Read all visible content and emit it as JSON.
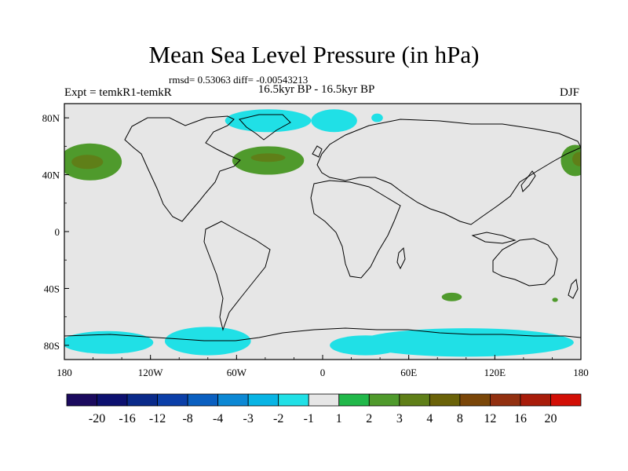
{
  "chart_data": {
    "type": "heatmap",
    "title": "Mean Sea Level Pressure (in hPa)",
    "stats_text": "rmsd= 0.53063 diff= -0.00543213",
    "left_label": "Expt = temkR1-temkR",
    "center_label": "16.5kyr BP - 16.5kyr BP",
    "right_label": "DJF",
    "x_ticks": [
      "180",
      "120W",
      "60W",
      "0",
      "60E",
      "120E",
      "180"
    ],
    "x_tick_values": [
      -180,
      -120,
      -60,
      0,
      60,
      120,
      180
    ],
    "y_ticks": [
      "80N",
      "40N",
      "0",
      "40S",
      "80S"
    ],
    "y_tick_values": [
      80,
      40,
      0,
      -40,
      -80
    ],
    "xlim": [
      -180,
      180
    ],
    "ylim": [
      -90,
      90
    ],
    "colorbar": {
      "labels": [
        "-20",
        "-16",
        "-12",
        "-8",
        "-4",
        "-3",
        "-2",
        "-1",
        "1",
        "2",
        "3",
        "4",
        "8",
        "12",
        "16",
        "20"
      ],
      "colors": [
        "#1b0a5e",
        "#0d1170",
        "#0a2a8a",
        "#0b3fa8",
        "#0a5fc0",
        "#0c88d4",
        "#08b4e4",
        "#20e0e6",
        "#e6e6e6",
        "#21b84a",
        "#4f9a2c",
        "#5f7f18",
        "#6a6208",
        "#7a4608",
        "#923010",
        "#a81c0a",
        "#d20f06"
      ]
    },
    "anomalies": [
      {
        "name": "north-pacific-high",
        "level": 2,
        "lon": -162,
        "lat": 49,
        "rlon": 22,
        "rlat": 13
      },
      {
        "name": "north-pacific-core",
        "level": 3,
        "lon": -164,
        "lat": 49,
        "rlon": 11,
        "rlat": 5
      },
      {
        "name": "north-pacific-east",
        "level": 2,
        "lon": 176,
        "lat": 50,
        "rlon": 10,
        "rlat": 11
      },
      {
        "name": "north-pacific-east-core",
        "level": 3,
        "lon": 179,
        "lat": 51,
        "rlon": 5,
        "rlat": 5
      },
      {
        "name": "north-atlantic-high",
        "level": 2,
        "lon": -38,
        "lat": 50,
        "rlon": 25,
        "rlat": 10
      },
      {
        "name": "north-atlantic-core",
        "level": 3,
        "lon": -38,
        "lat": 52,
        "rlon": 12,
        "rlat": 3
      },
      {
        "name": "southern-indian-high",
        "level": 2,
        "lon": 90,
        "lat": -46,
        "rlon": 7,
        "rlat": 3
      },
      {
        "name": "south-pacific-high",
        "level": 2,
        "lon": 162,
        "lat": -48,
        "rlon": 2,
        "rlat": 1.5
      },
      {
        "name": "arctic-low",
        "level": -1,
        "lon": -38,
        "lat": 78,
        "rlon": 30,
        "rlat": 8
      },
      {
        "name": "arctic-low-east",
        "level": -1,
        "lon": 8,
        "lat": 78,
        "rlon": 16,
        "rlat": 8
      },
      {
        "name": "arctic-low-small",
        "level": -1,
        "lon": 38,
        "lat": 80,
        "rlon": 4,
        "rlat": 3
      },
      {
        "name": "antarctic-low-west",
        "level": -1,
        "lon": -150,
        "lat": -78,
        "rlon": 32,
        "rlat": 8
      },
      {
        "name": "antarctic-low-center",
        "level": -1,
        "lon": -80,
        "lat": -77,
        "rlon": 30,
        "rlat": 10
      },
      {
        "name": "antarctic-low-east",
        "level": -1,
        "lon": 100,
        "lat": -78,
        "rlon": 75,
        "rlat": 10
      },
      {
        "name": "antarctic-low-atlantic",
        "level": -1,
        "lon": 30,
        "lat": -80,
        "rlon": 25,
        "rlat": 7
      }
    ]
  }
}
